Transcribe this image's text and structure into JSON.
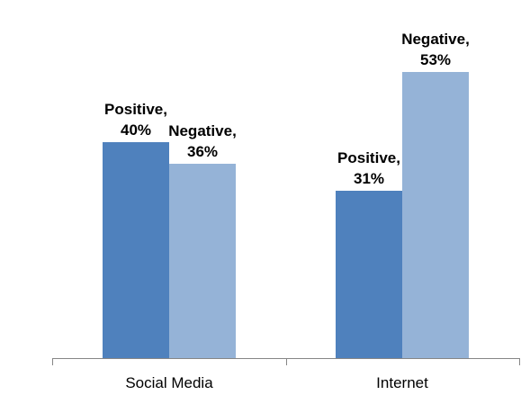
{
  "chart_data": {
    "type": "bar",
    "categories": [
      "Social Media",
      "Internet"
    ],
    "series": [
      {
        "values": [
          40,
          31
        ],
        "data_labels": [
          "Positive,|40%",
          "Positive,|31%"
        ]
      },
      {
        "values": [
          36,
          53
        ],
        "data_labels": [
          "Negative,|36%",
          "Negative,|53%"
        ]
      }
    ],
    "ylim": [
      0,
      60
    ],
    "grid": false,
    "legend": "none",
    "colors": {
      "series_0": "#4f81bd",
      "series_1": "#95b3d7",
      "axis": "#868686"
    }
  }
}
